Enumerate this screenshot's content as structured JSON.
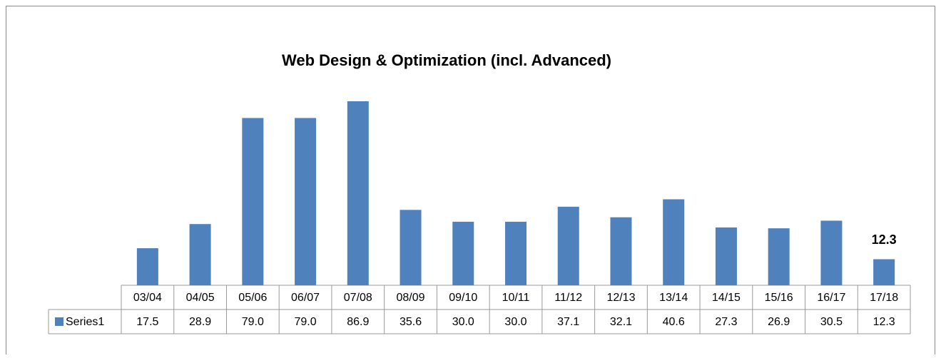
{
  "chart_data": {
    "type": "bar",
    "title": "Web Design & Optimization (incl. Advanced)",
    "categories": [
      "03/04",
      "04/05",
      "05/06",
      "06/07",
      "07/08",
      "08/09",
      "09/10",
      "10/11",
      "11/12",
      "12/13",
      "13/14",
      "14/15",
      "15/16",
      "16/17",
      "17/18"
    ],
    "series": [
      {
        "name": "Series1",
        "color": "#4f81bd",
        "values": [
          17.5,
          28.9,
          79,
          79,
          86.9,
          35.6,
          30,
          30,
          37.1,
          32.1,
          40.6,
          27.3,
          26.9,
          30.5,
          12.3
        ],
        "value_labels": [
          "17.5",
          "28.9",
          "79.0",
          "79.0",
          "86.9",
          "35.6",
          "30.0",
          "30.0",
          "37.1",
          "32.1",
          "40.6",
          "27.3",
          "26.9",
          "30.5",
          "12.3"
        ]
      }
    ],
    "data_label_index": 14
  }
}
